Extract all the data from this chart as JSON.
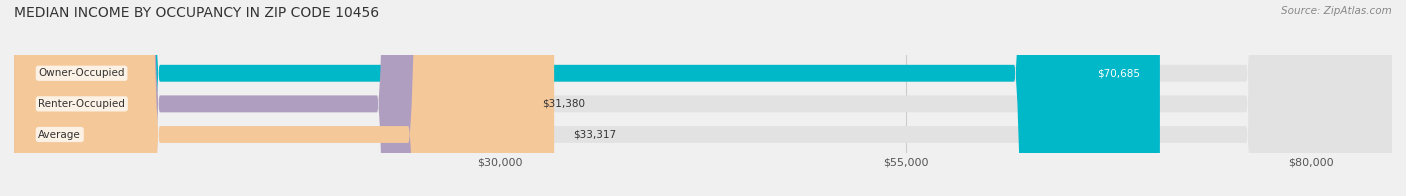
{
  "title": "MEDIAN INCOME BY OCCUPANCY IN ZIP CODE 10456",
  "source": "Source: ZipAtlas.com",
  "categories": [
    "Owner-Occupied",
    "Renter-Occupied",
    "Average"
  ],
  "values": [
    70685,
    31380,
    33317
  ],
  "bar_colors": [
    "#00b8c8",
    "#b09ec0",
    "#f5c89a"
  ],
  "value_labels": [
    "$70,685",
    "$31,380",
    "$33,317"
  ],
  "x_ticks": [
    30000,
    55000,
    80000
  ],
  "x_tick_labels": [
    "$30,000",
    "$55,000",
    "$80,000"
  ],
  "x_min": 0,
  "x_max": 85000,
  "background_color": "#f0f0f0",
  "bar_background_color": "#e2e2e2",
  "title_fontsize": 10,
  "source_fontsize": 7.5,
  "bar_label_fontsize": 7.5,
  "value_label_fontsize": 7.5,
  "tick_fontsize": 8
}
